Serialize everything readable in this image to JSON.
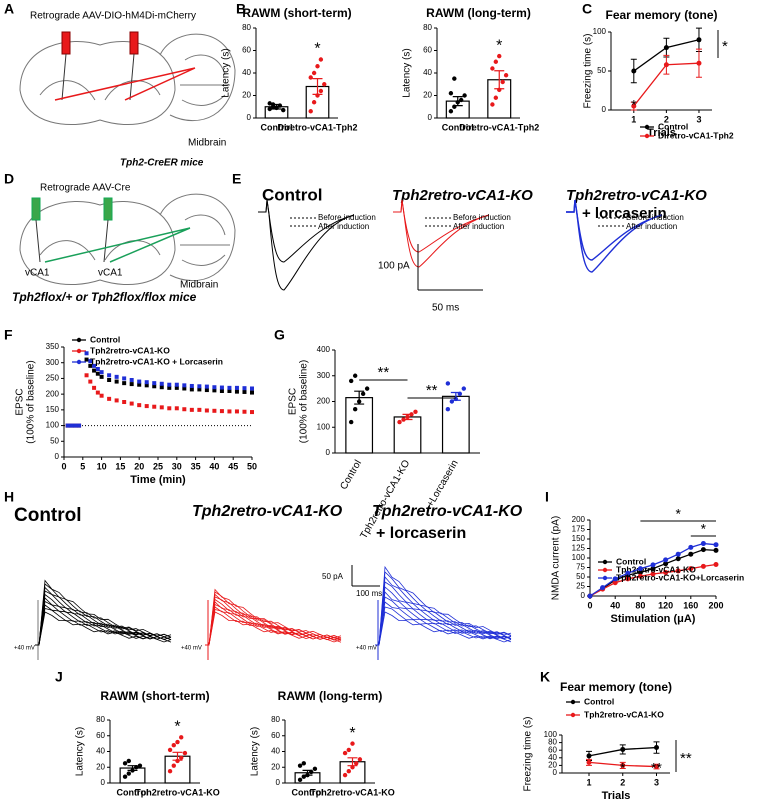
{
  "panel_labels": [
    "A",
    "B",
    "C",
    "D",
    "E",
    "F",
    "G",
    "H",
    "I",
    "J",
    "K"
  ],
  "schematics": {
    "a": {
      "title": "Retrograde AAV-DIO-hM4Di-mCherry",
      "target": "Midbrain",
      "mice": "Tph2-CreER mice"
    },
    "d": {
      "title": "Retrograde AAV-Cre",
      "left_site": "vCA1",
      "right_site": "vCA1",
      "target": "Midbrain",
      "mice": "Tph2flox/+ or Tph2flox/flox mice"
    }
  },
  "traces": {
    "e": {
      "conditions": [
        "Control",
        "Tph2retro-vCA1-KO",
        [
          "Tph2retro-vCA1-KO",
          "+ lorcaserin"
        ]
      ],
      "before": "Before induction",
      "after": "After induction",
      "scale_y": "100 pA",
      "scale_x": "50 ms"
    },
    "h": {
      "conditions": [
        "Control",
        "Tph2retro-vCA1-KO",
        [
          "Tph2retro-vCA1-KO",
          "+ lorcaserin"
        ]
      ],
      "holding": "+40 mV",
      "scale_y": "50 pA",
      "scale_x": "100 ms"
    }
  },
  "chart_data": [
    {
      "type": "bar",
      "title": "RAWM (short-term)",
      "y_label": "Latency (s)",
      "categories": [
        "Control",
        "Diretro-vCA1-Tph2"
      ],
      "values": [
        10,
        28
      ],
      "errors": [
        2,
        7
      ],
      "colors": [
        "#ffffff",
        "#ffffff"
      ],
      "point_colors": [
        "#000000",
        "#e8191b"
      ],
      "points": [
        [
          8,
          12,
          9,
          11,
          7,
          13,
          10,
          9
        ],
        [
          6,
          14,
          20,
          24,
          30,
          36,
          40,
          46,
          52
        ]
      ],
      "ylim": [
        0,
        80
      ],
      "yticks": [
        0,
        20,
        40,
        60,
        80
      ],
      "annotation": "*"
    },
    {
      "type": "bar",
      "title": "RAWM (long-term)",
      "y_label": "Latency (s)",
      "categories": [
        "Control",
        "Diretro-vCA1-Tph2"
      ],
      "values": [
        15,
        34
      ],
      "errors": [
        4,
        8
      ],
      "colors": [
        "#ffffff",
        "#ffffff"
      ],
      "point_colors": [
        "#000000",
        "#e8191b"
      ],
      "points": [
        [
          6,
          10,
          14,
          16,
          20,
          22,
          35
        ],
        [
          12,
          18,
          25,
          32,
          38,
          44,
          50,
          55
        ]
      ],
      "ylim": [
        0,
        80
      ],
      "yticks": [
        0,
        20,
        40,
        60,
        80
      ],
      "annotation": "*"
    },
    {
      "type": "line",
      "title": "Fear memory (tone)",
      "y_label": "Freezing time (s)",
      "x_label": "Trials",
      "x": [
        1,
        2,
        3
      ],
      "xlim": [
        0.3,
        3.4
      ],
      "xticks": [
        1,
        2,
        3
      ],
      "ylim": [
        0,
        100
      ],
      "yticks": [
        0,
        50,
        100
      ],
      "series": [
        {
          "name": "Control",
          "color": "#000000",
          "values": [
            50,
            80,
            90
          ],
          "errors": [
            15,
            12,
            15
          ]
        },
        {
          "name": "Diretro-vCA1-Tph2",
          "color": "#e8191b",
          "values": [
            5,
            58,
            60
          ],
          "errors": [
            5,
            12,
            18
          ]
        }
      ],
      "point_significance": [
        "*",
        null,
        null
      ],
      "significance": "*"
    },
    {
      "type": "line",
      "y_label": [
        "EPSC",
        "(100% of baseline)"
      ],
      "x_label": "Time (min)",
      "x": [
        1,
        2,
        3,
        4,
        6,
        7,
        8,
        9,
        10,
        12,
        14,
        16,
        18,
        20,
        22,
        24,
        26,
        28,
        30,
        32,
        34,
        36,
        38,
        40,
        42,
        44,
        46,
        48,
        50
      ],
      "xlim": [
        0,
        50
      ],
      "xticks": [
        0,
        5,
        10,
        15,
        20,
        25,
        30,
        35,
        40,
        45,
        50
      ],
      "ylim": [
        0,
        350
      ],
      "yticks": [
        0,
        50,
        100,
        150,
        200,
        250,
        300,
        350
      ],
      "reference_line": 100,
      "series": [
        {
          "name": "Control",
          "color": "#000000",
          "values": [
            100,
            100,
            100,
            100,
            310,
            290,
            275,
            265,
            255,
            245,
            240,
            235,
            232,
            230,
            228,
            225,
            222,
            220,
            220,
            218,
            215,
            215,
            213,
            212,
            210,
            210,
            208,
            207,
            205
          ]
        },
        {
          "name": "Tph2retro-vCA1-KO",
          "color": "#e8191b",
          "values": [
            100,
            100,
            100,
            100,
            260,
            240,
            220,
            205,
            195,
            185,
            180,
            175,
            170,
            165,
            162,
            160,
            158,
            155,
            155,
            152,
            150,
            150,
            148,
            147,
            146,
            145,
            145,
            144,
            143
          ]
        },
        {
          "name": "Tph2retro-vCA1-KO + Lorcaserin",
          "color": "#1f2fd6",
          "values": [
            100,
            100,
            100,
            100,
            330,
            305,
            290,
            280,
            270,
            260,
            255,
            250,
            245,
            240,
            238,
            235,
            233,
            230,
            230,
            228,
            226,
            225,
            224,
            222,
            221,
            220,
            220,
            219,
            218
          ]
        }
      ]
    },
    {
      "type": "bar",
      "y_label": [
        "EPSC",
        "(100% of baseline)"
      ],
      "categories": [
        "Control",
        "Tph2retro-vCA1-KO",
        "+Lorcaserin"
      ],
      "values": [
        215,
        140,
        220
      ],
      "errors": [
        25,
        10,
        15
      ],
      "colors": [
        "#ffffff",
        "#ffffff",
        "#ffffff"
      ],
      "point_colors": [
        "#000000",
        "#e8191b",
        "#1f2fd6"
      ],
      "points": [
        [
          120,
          170,
          200,
          230,
          250,
          280,
          300
        ],
        [
          120,
          130,
          140,
          150,
          160
        ],
        [
          170,
          200,
          210,
          230,
          250,
          270
        ]
      ],
      "ylim": [
        0,
        400
      ],
      "yticks": [
        0,
        100,
        200,
        300,
        400
      ],
      "significance": [
        "**",
        "**"
      ]
    },
    {
      "type": "line",
      "y_label": "NMDA current (pA)",
      "x_label": "Stimulation (μA)",
      "x": [
        0,
        20,
        40,
        60,
        80,
        100,
        120,
        140,
        160,
        180,
        200
      ],
      "xlim": [
        0,
        200
      ],
      "xticks": [
        0,
        40,
        80,
        120,
        160,
        200
      ],
      "ylim": [
        0,
        200
      ],
      "yticks": [
        0,
        25,
        50,
        75,
        100,
        125,
        150,
        175,
        200
      ],
      "series": [
        {
          "name": "Control",
          "color": "#000000",
          "values": [
            0,
            20,
            42,
            55,
            62,
            72,
            85,
            98,
            110,
            122,
            120
          ]
        },
        {
          "name": "Tph2retro-vCA1-KO",
          "color": "#e8191b",
          "values": [
            0,
            18,
            35,
            45,
            52,
            58,
            62,
            66,
            72,
            78,
            83
          ]
        },
        {
          "name": "Tph2retro-vCA1-KO+Lorcaserin",
          "color": "#1f2fd6",
          "values": [
            0,
            22,
            45,
            60,
            72,
            82,
            95,
            110,
            128,
            138,
            135
          ]
        }
      ],
      "significance": [
        "*",
        "*"
      ]
    },
    {
      "type": "bar",
      "title": "RAWM (short-term)",
      "y_label": "Latency (s)",
      "categories": [
        "Control",
        "Tph2retro-vCA1-KO"
      ],
      "values": [
        19,
        34
      ],
      "errors": [
        3,
        5
      ],
      "colors": [
        "#ffffff",
        "#ffffff"
      ],
      "point_colors": [
        "#000000",
        "#e8191b"
      ],
      "points": [
        [
          8,
          12,
          16,
          20,
          22,
          25,
          28
        ],
        [
          15,
          22,
          28,
          32,
          38,
          42,
          48,
          52,
          58
        ]
      ],
      "ylim": [
        0,
        80
      ],
      "yticks": [
        0,
        20,
        40,
        60,
        80
      ],
      "annotation": "*"
    },
    {
      "type": "bar",
      "title": "RAWM (long-term)",
      "y_label": "Latency (s)",
      "categories": [
        "Control",
        "Tph2retro-vCA1-KO"
      ],
      "values": [
        13,
        27
      ],
      "errors": [
        3,
        5
      ],
      "colors": [
        "#ffffff",
        "#ffffff"
      ],
      "point_colors": [
        "#000000",
        "#e8191b"
      ],
      "points": [
        [
          4,
          8,
          10,
          14,
          18,
          22,
          25
        ],
        [
          10,
          15,
          20,
          25,
          30,
          38,
          42,
          50
        ]
      ],
      "ylim": [
        0,
        80
      ],
      "yticks": [
        0,
        20,
        40,
        60,
        80
      ],
      "annotation": "*"
    },
    {
      "type": "line",
      "title": "Fear memory (tone)",
      "y_label": "Freezing time (s)",
      "x_label": "Trials",
      "x": [
        1,
        2,
        3
      ],
      "xlim": [
        0.2,
        3.4
      ],
      "xticks": [
        1,
        2,
        3
      ],
      "ylim": [
        0,
        100
      ],
      "yticks": [
        0,
        20,
        40,
        60,
        80,
        100
      ],
      "series": [
        {
          "name": "Control",
          "color": "#000000",
          "values": [
            45,
            62,
            67
          ],
          "errors": [
            12,
            12,
            15
          ]
        },
        {
          "name": "Tph2retro-vCA1-KO",
          "color": "#e8191b",
          "values": [
            28,
            20,
            17
          ],
          "errors": [
            8,
            8,
            6
          ]
        }
      ],
      "point_significance": [
        null,
        "*",
        "**"
      ],
      "significance": "**"
    }
  ]
}
